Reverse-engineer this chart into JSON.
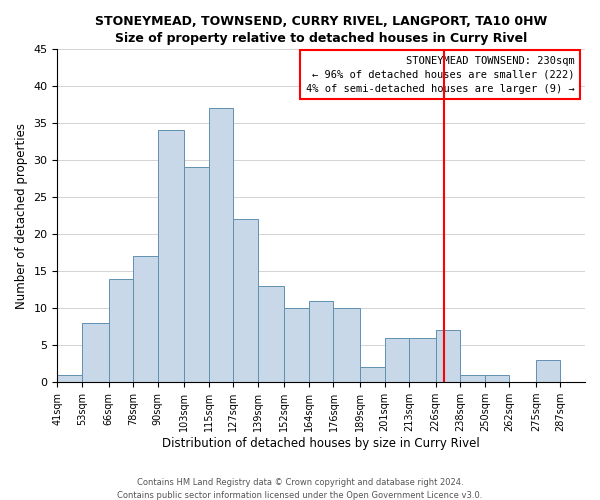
{
  "title": "STONEYMEAD, TOWNSEND, CURRY RIVEL, LANGPORT, TA10 0HW",
  "subtitle": "Size of property relative to detached houses in Curry Rivel",
  "xlabel": "Distribution of detached houses by size in Curry Rivel",
  "ylabel": "Number of detached properties",
  "bin_edges": [
    41,
    53,
    66,
    78,
    90,
    103,
    115,
    127,
    139,
    152,
    164,
    176,
    189,
    201,
    213,
    226,
    238,
    250,
    262,
    275,
    287,
    299
  ],
  "counts": [
    1,
    8,
    14,
    17,
    34,
    29,
    37,
    22,
    13,
    10,
    11,
    10,
    2,
    6,
    6,
    7,
    1,
    1,
    0,
    3,
    0
  ],
  "bar_color": "#c8d8e8",
  "bar_edge_color": "#6090b0",
  "vline_x": 230,
  "vline_color": "red",
  "ylim": [
    0,
    45
  ],
  "yticks": [
    0,
    5,
    10,
    15,
    20,
    25,
    30,
    35,
    40,
    45
  ],
  "annotation_box_title": "STONEYMEAD TOWNSEND: 230sqm",
  "annotation_line1": "← 96% of detached houses are smaller (222)",
  "annotation_line2": "4% of semi-detached houses are larger (9) →",
  "footer1": "Contains HM Land Registry data © Crown copyright and database right 2024.",
  "footer2": "Contains public sector information licensed under the Open Government Licence v3.0.",
  "tick_labels": [
    "41sqm",
    "53sqm",
    "66sqm",
    "78sqm",
    "90sqm",
    "103sqm",
    "115sqm",
    "127sqm",
    "139sqm",
    "152sqm",
    "164sqm",
    "176sqm",
    "189sqm",
    "201sqm",
    "213sqm",
    "226sqm",
    "238sqm",
    "250sqm",
    "262sqm",
    "275sqm",
    "287sqm"
  ]
}
